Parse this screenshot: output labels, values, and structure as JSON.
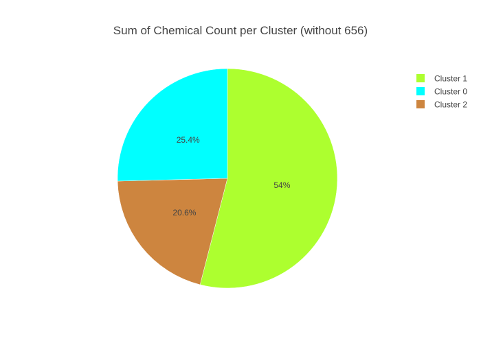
{
  "chart_data": {
    "type": "pie",
    "title": "Sum of Chemical Count per Cluster (without 656)",
    "slices": [
      {
        "label": "Cluster 1",
        "percent": 54.0,
        "display": "54%",
        "color": "#adff2f"
      },
      {
        "label": "Cluster 2",
        "percent": 20.6,
        "display": "20.6%",
        "color": "#cd853f"
      },
      {
        "label": "Cluster 0",
        "percent": 25.4,
        "display": "25.4%",
        "color": "#00ffff"
      }
    ],
    "legend": {
      "placement": "top-right",
      "entries": [
        {
          "label": "Cluster 1",
          "color": "#adff2f"
        },
        {
          "label": "Cluster 0",
          "color": "#00ffff"
        },
        {
          "label": "Cluster 2",
          "color": "#cd853f"
        }
      ]
    },
    "direction": "clockwise",
    "start_angle": "12 o'clock"
  }
}
